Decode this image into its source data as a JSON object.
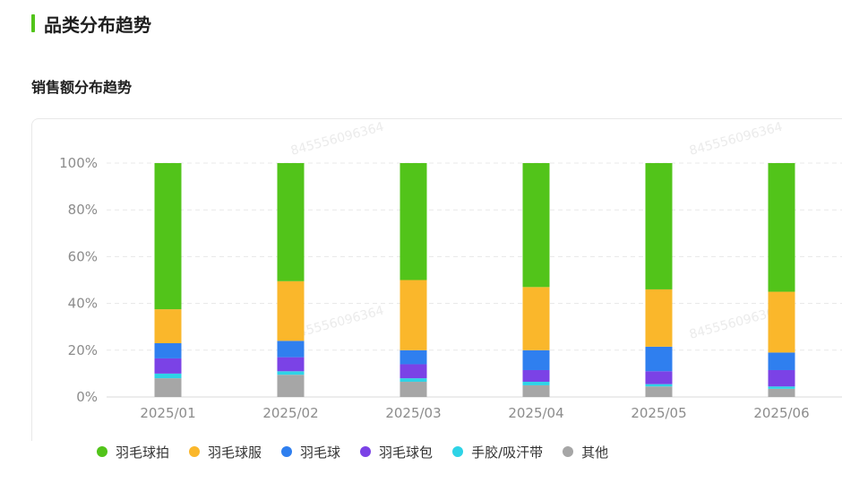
{
  "header": {
    "section_title": "品类分布趋势",
    "chart_title": "销售额分布趋势"
  },
  "watermark": "845556096364",
  "chart_data": {
    "type": "bar",
    "stacked": true,
    "title": "销售额分布趋势",
    "xlabel": "",
    "ylabel": "",
    "ylim": [
      0,
      100
    ],
    "y_ticks": [
      "0%",
      "20%",
      "40%",
      "60%",
      "80%",
      "100%"
    ],
    "grid": true,
    "legend_position": "bottom",
    "categories": [
      "2025/01",
      "2025/02",
      "2025/03",
      "2025/04",
      "2025/05",
      "2025/06"
    ],
    "series": [
      {
        "name": "其他",
        "color": "#a6a6a6",
        "values": [
          8,
          9.5,
          6.5,
          5,
          4.5,
          3.5
        ]
      },
      {
        "name": "手胶/吸汗带",
        "color": "#2ed3e6",
        "values": [
          2,
          1.5,
          1.5,
          1.5,
          1,
          1
        ]
      },
      {
        "name": "羽毛球包",
        "color": "#7b42e6",
        "values": [
          6.5,
          6,
          6,
          5,
          5.5,
          7
        ]
      },
      {
        "name": "羽毛球",
        "color": "#2f7fef",
        "values": [
          6.5,
          7,
          6,
          8.5,
          10.5,
          7.5
        ]
      },
      {
        "name": "羽毛球服",
        "color": "#fab72b",
        "values": [
          14.5,
          25.5,
          30,
          27,
          24.5,
          26
        ]
      },
      {
        "name": "羽毛球拍",
        "color": "#52c41a",
        "values": [
          62.5,
          50.5,
          50,
          53,
          54,
          55
        ]
      }
    ],
    "legend_order": [
      "羽毛球拍",
      "羽毛球服",
      "羽毛球",
      "羽毛球包",
      "手胶/吸汗带",
      "其他"
    ]
  }
}
